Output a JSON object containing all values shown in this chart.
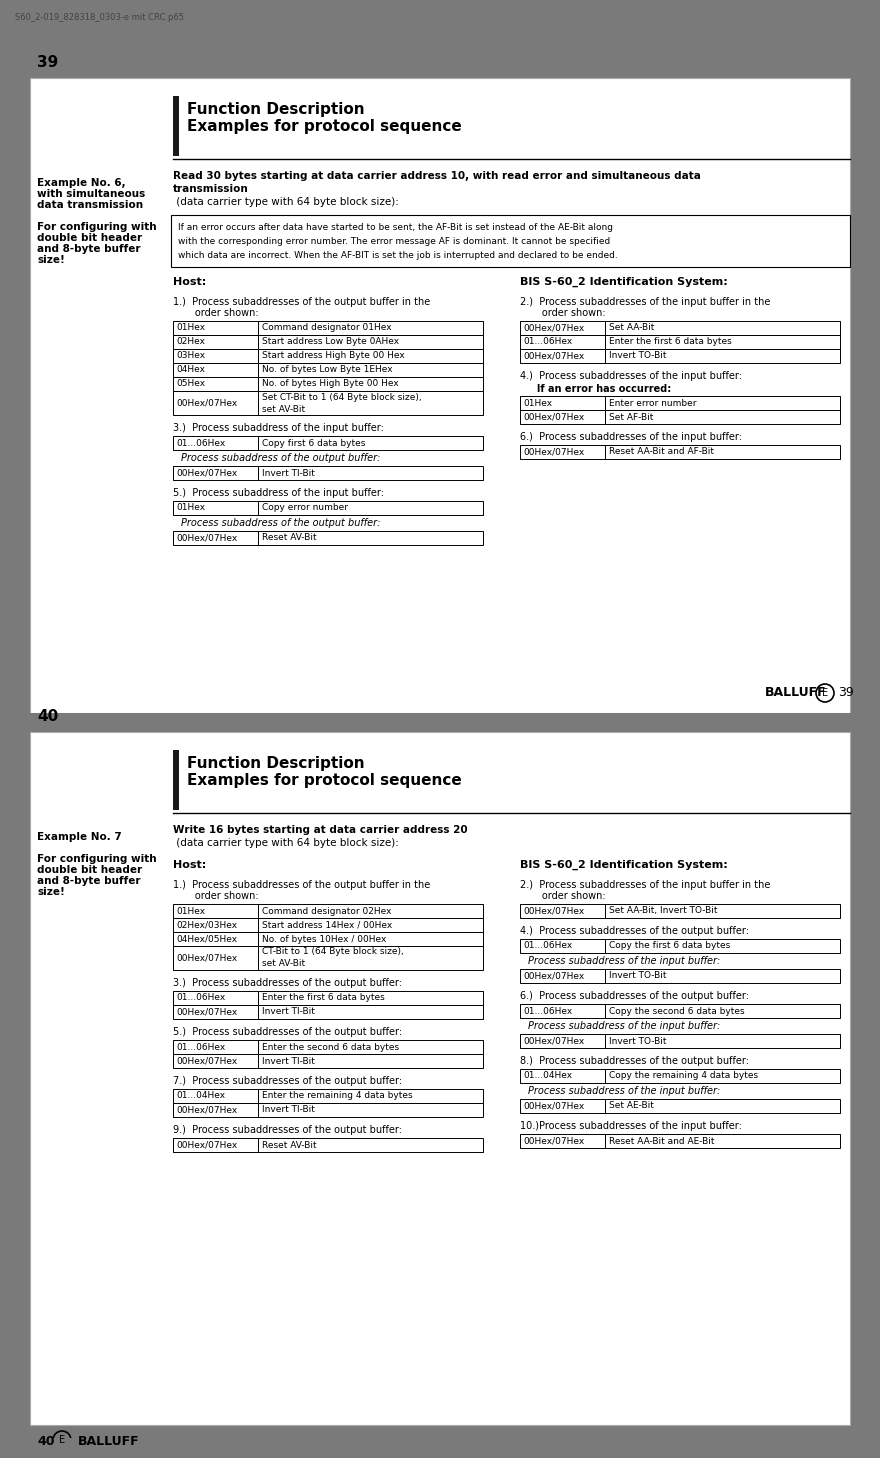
{
  "file_label": "S60_2-019_828318_0303-e mit CRC.p65",
  "bg_color": "#7a7a7a",
  "page_bg": "#ffffff",
  "page_border": "#aaaaaa",
  "header_bar": "#1a1a1a",
  "pages": [
    {
      "page_num_top": "39",
      "page_num_bot": "39",
      "title1": "Function Description",
      "title2": "Examples for protocol sequence",
      "left_labels": [
        {
          "text": "Example No. 6,",
          "bold": true
        },
        {
          "text": "with simultaneous",
          "bold": true
        },
        {
          "text": "data transmission",
          "bold": true
        },
        {
          "text": "",
          "bold": false
        },
        {
          "text": "For configuring with",
          "bold": true
        },
        {
          "text": "double bit header",
          "bold": true
        },
        {
          "text": "and 8-byte buffer",
          "bold": true
        },
        {
          "text": "size!",
          "bold": true
        }
      ],
      "main_bold": "Read 30 bytes starting at data carrier address 10, with read error and simultaneous data\ntransmission",
      "main_normal": " (data carrier type with 64 byte block size):",
      "note": "If an error occurs after data have started to be sent, the AF-Bit is set instead of the AE-Bit along\nwith the corresponding error number. The error message AF is dominant. It cannot be specified\nwhich data are incorrect. When the AF-BIT is set the job is interrupted and declared to be ended.",
      "host": "Host:",
      "bis": "BIS S-60_2 Identification System:",
      "col_divider": 360,
      "sections": [
        {
          "col": 0,
          "step": "1.)  Process subaddresses of the output buffer in the\n       order shown:",
          "table": [
            [
              "01Hex",
              "Command designator 01Hex"
            ],
            [
              "02Hex",
              "Start address Low Byte 0AHex"
            ],
            [
              "03Hex",
              "Start address High Byte 00 Hex"
            ],
            [
              "04Hex",
              "No. of bytes Low Byte 1EHex"
            ],
            [
              "05Hex",
              "No. of bytes High Byte 00 Hex"
            ],
            [
              "00Hex/07Hex",
              "Set CT-Bit to 1 (64 Byte block size),\nset AV-Bit"
            ]
          ]
        },
        {
          "col": 1,
          "step": "2.)  Process subaddresses of the input buffer in the\n       order shown:",
          "table": [
            [
              "00Hex/07Hex",
              "Set AA-Bit"
            ],
            [
              "01...06Hex",
              "Enter the first 6 data bytes"
            ],
            [
              "00Hex/07Hex",
              "Invert TO-Bit"
            ]
          ]
        },
        {
          "col": 0,
          "step": "3.)  Process subaddress of the input buffer:",
          "table": [
            [
              "01...06Hex",
              "Copy first 6 data bytes"
            ]
          ],
          "sub_label": "Process subaddress of the output buffer:",
          "sub_table": [
            [
              "00Hex/07Hex",
              "Invert TI-Bit"
            ]
          ]
        },
        {
          "col": 1,
          "step": "4.)  Process subaddresses of the input buffer:",
          "step2": "     If an error has occurred:",
          "table": [
            [
              "01Hex",
              "Enter error number"
            ],
            [
              "00Hex/07Hex",
              "Set AF-Bit"
            ]
          ]
        },
        {
          "col": 0,
          "step": "5.)  Process subaddress of the input buffer:",
          "table": [
            [
              "01Hex",
              "Copy error number"
            ]
          ],
          "sub_label": "Process subaddress of the output buffer:",
          "sub_table": [
            [
              "00Hex/07Hex",
              "Reset AV-Bit"
            ]
          ]
        },
        {
          "col": 1,
          "step": "6.)  Process subaddresses of the input buffer:",
          "table": [
            [
              "00Hex/07Hex",
              "Reset AA-Bit and AF-Bit"
            ]
          ]
        }
      ]
    },
    {
      "page_num_top": "40",
      "page_num_bot": "40",
      "title1": "Function Description",
      "title2": "Examples for protocol sequence",
      "left_labels": [
        {
          "text": "Example No. 7",
          "bold": true
        },
        {
          "text": "",
          "bold": false
        },
        {
          "text": "For configuring with",
          "bold": true
        },
        {
          "text": "double bit header",
          "bold": true
        },
        {
          "text": "and 8-byte buffer",
          "bold": true
        },
        {
          "text": "size!",
          "bold": true
        }
      ],
      "main_bold": "Write 16 bytes starting at data carrier address 20",
      "main_normal": " (data carrier type with 64 byte block size):",
      "note": "",
      "host": "Host:",
      "bis": "BIS S-60_2 Identification System:",
      "col_divider": 360,
      "sections": [
        {
          "col": 0,
          "step": "1.)  Process subaddresses of the output buffer in the\n       order shown:",
          "table": [
            [
              "01Hex",
              "Command designator 02Hex"
            ],
            [
              "02Hex/03Hex",
              "Start address 14Hex / 00Hex"
            ],
            [
              "04Hex/05Hex",
              "No. of bytes 10Hex / 00Hex"
            ],
            [
              "00Hex/07Hex",
              "CT-Bit to 1 (64 Byte block size),\nset AV-Bit"
            ]
          ]
        },
        {
          "col": 1,
          "step": "2.)  Process subaddresses of the input buffer in the\n       order shown:",
          "table": [
            [
              "00Hex/07Hex",
              "Set AA-Bit, Invert TO-Bit"
            ]
          ]
        },
        {
          "col": 0,
          "step": "3.)  Process subaddresses of the output buffer:",
          "table": [
            [
              "01...06Hex",
              "Enter the first 6 data bytes"
            ],
            [
              "00Hex/07Hex",
              "Invert TI-Bit"
            ]
          ]
        },
        {
          "col": 1,
          "step": "4.)  Process subaddresses of the output buffer:",
          "table": [
            [
              "01...06Hex",
              "Copy the first 6 data bytes"
            ]
          ],
          "sub_label": "Process subaddress of the input buffer:",
          "sub_table": [
            [
              "00Hex/07Hex",
              "Invert TO-Bit"
            ]
          ]
        },
        {
          "col": 0,
          "step": "5.)  Process subaddresses of the output buffer:",
          "table": [
            [
              "01...06Hex",
              "Enter the second 6 data bytes"
            ],
            [
              "00Hex/07Hex",
              "Invert TI-Bit"
            ]
          ]
        },
        {
          "col": 1,
          "step": "6.)  Process subaddresses of the output buffer:",
          "table": [
            [
              "01...06Hex",
              "Copy the second 6 data bytes"
            ]
          ],
          "sub_label": "Process subaddress of the input buffer:",
          "sub_table": [
            [
              "00Hex/07Hex",
              "Invert TO-Bit"
            ]
          ]
        },
        {
          "col": 0,
          "step": "7.)  Process subaddresses of the output buffer:",
          "table": [
            [
              "01...04Hex",
              "Enter the remaining 4 data bytes"
            ],
            [
              "00Hex/07Hex",
              "Invert TI-Bit"
            ]
          ]
        },
        {
          "col": 1,
          "step": "8.)  Process subaddresses of the output buffer:",
          "table": [
            [
              "01...04Hex",
              "Copy the remaining 4 data bytes"
            ]
          ],
          "sub_label": "Process subaddress of the input buffer:",
          "sub_table": [
            [
              "00Hex/07Hex",
              "Set AE-Bit"
            ]
          ]
        },
        {
          "col": 0,
          "step": "9.)  Process subaddresses of the output buffer:",
          "table": [
            [
              "00Hex/07Hex",
              "Reset AV-Bit"
            ]
          ]
        },
        {
          "col": 1,
          "step": "10.)Process subaddresses of the input buffer:",
          "table": [
            [
              "00Hex/07Hex",
              "Reset AA-Bit and AE-Bit"
            ]
          ]
        }
      ]
    }
  ]
}
